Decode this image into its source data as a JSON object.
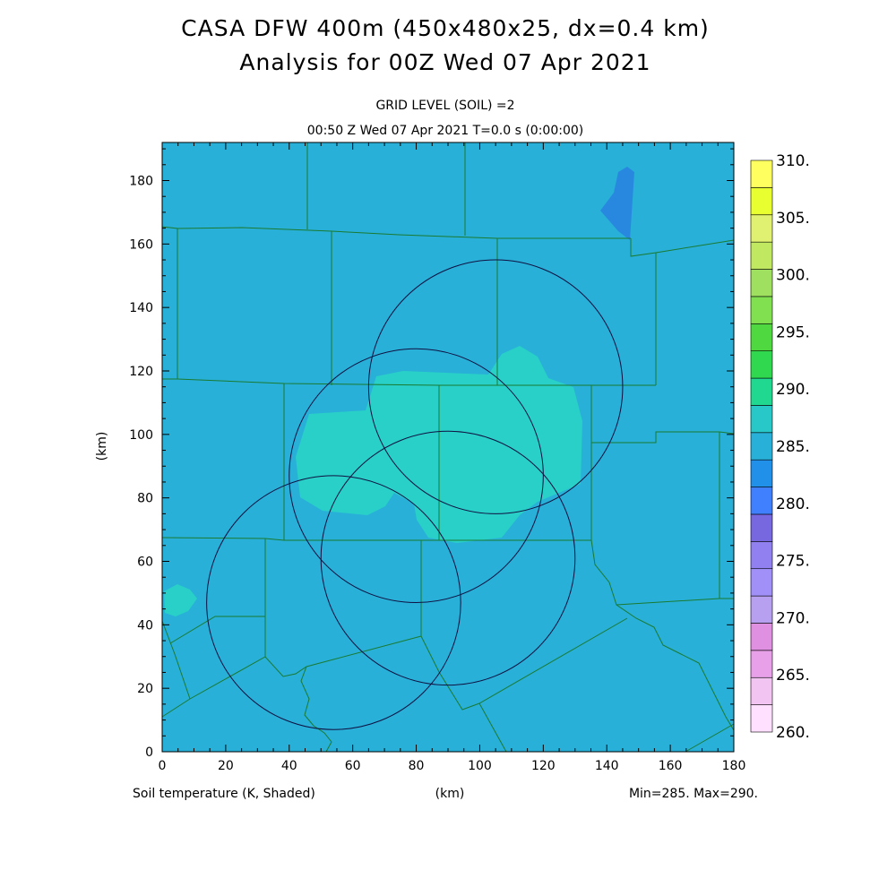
{
  "header": {
    "title_line1": "CASA DFW 400m (450x480x25, dx=0.4 km)",
    "title_line2": "Analysis for 00Z Wed 07 Apr 2021",
    "grid_level": "GRID LEVEL (SOIL) =2",
    "valid_time": "00:50 Z Wed 07 Apr 2021   T=0.0 s (0:00:00)"
  },
  "axes": {
    "x_label": "(km)",
    "y_label": "(km)",
    "x_ticks": [
      "0",
      "20",
      "40",
      "60",
      "80",
      "100",
      "120",
      "140",
      "160",
      "180"
    ],
    "y_ticks": [
      "0",
      "20",
      "40",
      "60",
      "80",
      "100",
      "120",
      "140",
      "160",
      "180"
    ],
    "x_range": [
      0,
      180
    ],
    "y_range": [
      0,
      192
    ]
  },
  "footer": {
    "field_label": "Soil temperature (K, Shaded)",
    "minmax": "Min=285. Max=290."
  },
  "colorbar": {
    "labels": [
      "310.",
      "305.",
      "300.",
      "295.",
      "290.",
      "285.",
      "280.",
      "275.",
      "270.",
      "265.",
      "260."
    ],
    "colors_bottom_to_top": [
      "#ffe0ff",
      "#f2c4f2",
      "#e8a0e8",
      "#e090e0",
      "#b8a0f0",
      "#a090f8",
      "#9080f0",
      "#7868e0",
      "#4080ff",
      "#2090e8",
      "#28b0d8",
      "#28c8c8",
      "#20d890",
      "#30d850",
      "#50d840",
      "#80e050",
      "#a0e060",
      "#c0e860",
      "#e0f070",
      "#e8ff30",
      "#ffff60"
    ]
  },
  "map_colors": {
    "background": "#28b0d8",
    "warm_region": "#28d0c8",
    "cool_region": "#2888e0",
    "county_lines": "#1a7a30",
    "radar_rings": "#101040"
  },
  "radars": [
    {
      "name": "radar-ring-northeast",
      "x_km": 105,
      "y_km": 115,
      "radius_km": 40
    },
    {
      "name": "radar-ring-center",
      "x_km": 80,
      "y_km": 87,
      "radius_km": 40
    },
    {
      "name": "radar-ring-southeast",
      "x_km": 90,
      "y_km": 61,
      "radius_km": 40
    },
    {
      "name": "radar-ring-southwest",
      "x_km": 54,
      "y_km": 47,
      "radius_km": 40
    }
  ]
}
